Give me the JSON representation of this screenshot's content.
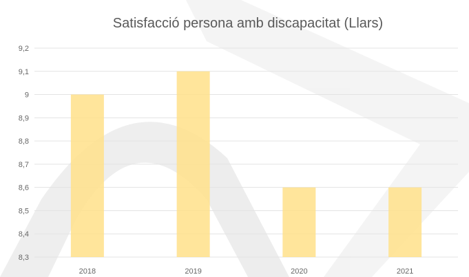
{
  "chart_data": {
    "type": "bar",
    "title": "Satisfacció persona amb discapacitat (Llars)",
    "categories": [
      "2018",
      "2019",
      "2020",
      "2021"
    ],
    "values": [
      9.0,
      9.1,
      8.6,
      8.6
    ],
    "ylim": [
      8.3,
      9.2
    ],
    "yticks": [
      "8,3",
      "8,4",
      "8,5",
      "8,6",
      "8,7",
      "8,8",
      "8,9",
      "9",
      "9,1",
      "9,2"
    ],
    "grid": true,
    "legend": "none",
    "xlabel": "",
    "ylabel": ""
  },
  "colors": {
    "bar": "#FFE08A",
    "grid": "#E3E3E3",
    "text": "#666666",
    "title": "#595959",
    "watermark": "#D9D9D9"
  }
}
